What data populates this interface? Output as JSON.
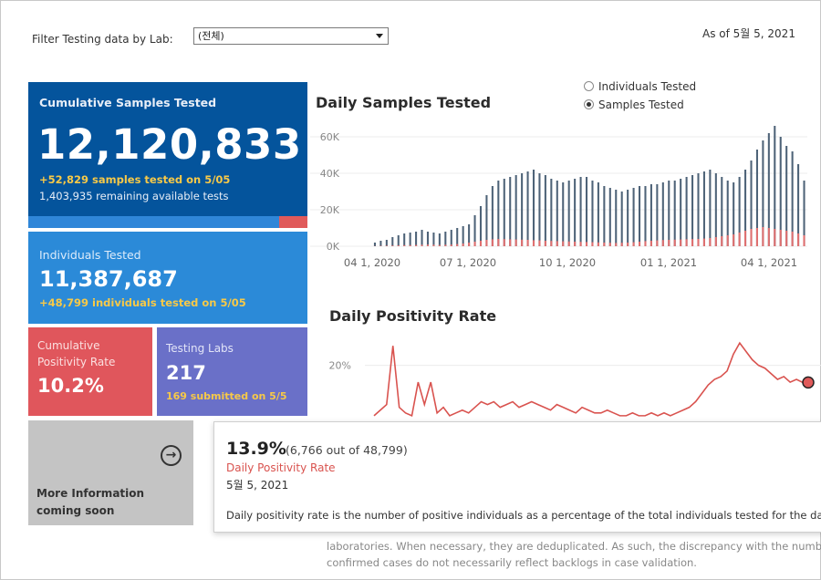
{
  "filter": {
    "label": "Filter Testing data by Lab:",
    "value": "(전체)"
  },
  "as_of": "As of 5월 5, 2021",
  "cards": {
    "cumulative": {
      "title": "Cumulative Samples Tested",
      "value": "12,120,833",
      "today": "+52,829 samples tested on 5/05",
      "remaining": "1,403,935 remaining available tests",
      "used_fraction": 0.1
    },
    "individuals": {
      "title": "Individuals Tested",
      "value": "11,387,687",
      "today": "+48,799  individuals  tested on 5/05"
    },
    "positivity": {
      "title_line1": "Cumulative",
      "title_line2": "Positivity Rate",
      "value": "10.2%"
    },
    "labs": {
      "title": "Testing Labs",
      "value": "217",
      "submitted": "169 submitted on 5/5"
    },
    "more": {
      "line1": "More Information",
      "line2": "coming soon"
    }
  },
  "toggle": {
    "option1": "Individuals Tested",
    "option2": "Samples Tested",
    "selected": "Samples Tested"
  },
  "chart_data": [
    {
      "type": "bar",
      "title": "Daily Samples Tested",
      "y_ticks": [
        "0K",
        "20K",
        "40K",
        "60K"
      ],
      "ylim": [
        0,
        65000
      ],
      "x_ticks": [
        "04 1, 2020",
        "07 1, 2020",
        "10 1, 2020",
        "01 1, 2021",
        "04 1, 2021"
      ],
      "series": [
        {
          "color": "#4e6378",
          "values": [
            2000,
            3000,
            3500,
            5000,
            6000,
            7000,
            7500,
            8000,
            9000,
            8000,
            7500,
            7000,
            8000,
            9000,
            10000,
            11000,
            12000,
            17000,
            22000,
            28000,
            33000,
            36000,
            37000,
            38000,
            39000,
            40000,
            41000,
            42000,
            40000,
            39000,
            37000,
            36000,
            35000,
            36000,
            37000,
            38000,
            38000,
            36000,
            35000,
            33000,
            32000,
            31000,
            30000,
            31000,
            32000,
            33000,
            33000,
            34000,
            34000,
            35000,
            36000,
            36000,
            37000,
            38000,
            39000,
            40000,
            41000,
            42000,
            40000,
            38000,
            36000,
            35000,
            38000,
            42000,
            47000,
            53000,
            58000,
            62000,
            66000,
            60000,
            55000,
            52000,
            45000,
            36000
          ]
        },
        {
          "color": "#e07070",
          "values": [
            100,
            200,
            300,
            400,
            500,
            600,
            600,
            700,
            800,
            900,
            800,
            700,
            800,
            900,
            1200,
            1500,
            2000,
            2500,
            3000,
            3500,
            3800,
            4000,
            3900,
            3800,
            3700,
            3600,
            3500,
            3300,
            3200,
            3000,
            2900,
            2800,
            2700,
            2600,
            2500,
            2400,
            2300,
            2200,
            2100,
            2000,
            1900,
            1800,
            1900,
            2000,
            2200,
            2500,
            2800,
            3000,
            3200,
            3400,
            3500,
            3600,
            3700,
            3800,
            3900,
            4000,
            4200,
            4500,
            5000,
            5500,
            6000,
            6500,
            7500,
            8500,
            9500,
            10000,
            10500,
            10000,
            9500,
            9000,
            8500,
            8000,
            7000,
            6000
          ]
        }
      ]
    },
    {
      "type": "line",
      "title": "Daily Positivity Rate",
      "y_ticks": [
        "20%"
      ],
      "series": [
        {
          "color": "#d9534f",
          "values": [
            2,
            4,
            6,
            27,
            5,
            3,
            2,
            14,
            6,
            14,
            3,
            5,
            2,
            3,
            4,
            3,
            5,
            7,
            6,
            7,
            5,
            6,
            7,
            5,
            6,
            7,
            6,
            5,
            4,
            6,
            5,
            4,
            3,
            5,
            4,
            3,
            3,
            4,
            3,
            2,
            2,
            3,
            2,
            2,
            3,
            2,
            3,
            2,
            3,
            4,
            5,
            7,
            10,
            13,
            15,
            16,
            18,
            24,
            28,
            25,
            22,
            20,
            19,
            17,
            15,
            16,
            14,
            15,
            13.9
          ]
        }
      ]
    }
  ],
  "tooltip": {
    "rate": "13.9%",
    "detail": "(6,766 out of  48,799)",
    "label": "Daily Positivity Rate",
    "date": "5월 5, 2021",
    "description": "Daily positivity rate is the number of positive individuals as a percentage of the total individuals tested for the day"
  },
  "background_note": {
    "line1": "laboratories. When necessary, they are deduplicated. As such, the discrepancy with the number",
    "line2": "confirmed cases do not necessarily reflect backlogs in case validation."
  }
}
